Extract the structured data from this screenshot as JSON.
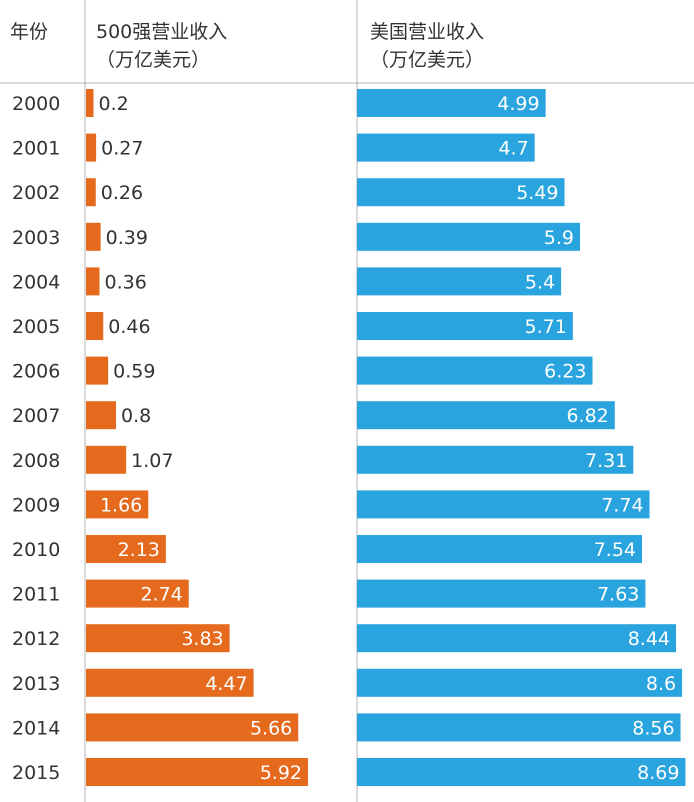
{
  "header": {
    "year_col": "年份",
    "left_title_line1": "500强营业收入",
    "left_title_line2": "（万亿美元）",
    "right_title_line1": "美国营业收入",
    "right_title_line2": "（万亿美元）"
  },
  "colors": {
    "left_bar": "#E56A1E",
    "right_bar": "#2AA4DE",
    "divider": "#B5B5B5",
    "text": "#333333"
  },
  "chart_data": {
    "type": "bar",
    "orientation": "horizontal",
    "categories": [
      "2000",
      "2001",
      "2002",
      "2003",
      "2004",
      "2005",
      "2006",
      "2007",
      "2008",
      "2009",
      "2010",
      "2011",
      "2012",
      "2013",
      "2014",
      "2015"
    ],
    "series": [
      {
        "name": "500强营业收入（万亿美元）",
        "values": [
          0.2,
          0.27,
          0.26,
          0.39,
          0.36,
          0.46,
          0.59,
          0.8,
          1.07,
          1.66,
          2.13,
          2.74,
          3.83,
          4.47,
          5.66,
          5.92
        ],
        "labels": [
          "0.2",
          "0.27",
          "0.26",
          "0.39",
          "0.36",
          "0.46",
          "0.59",
          "0.8",
          "1.07",
          "1.66",
          "2.13",
          "2.74",
          "3.83",
          "4.47",
          "5.66",
          "5.92"
        ]
      },
      {
        "name": "美国营业收入（万亿美元）",
        "values": [
          4.99,
          4.7,
          5.49,
          5.9,
          5.4,
          5.71,
          6.23,
          6.82,
          7.31,
          7.74,
          7.54,
          7.63,
          8.44,
          8.6,
          8.56,
          8.69
        ],
        "labels": [
          "4.99",
          "4.7",
          "5.49",
          "5.9",
          "5.4",
          "5.71",
          "6.23",
          "6.82",
          "7.31",
          "7.74",
          "7.54",
          "7.63",
          "8.44",
          "8.6",
          "8.56",
          "8.69"
        ]
      }
    ]
  }
}
